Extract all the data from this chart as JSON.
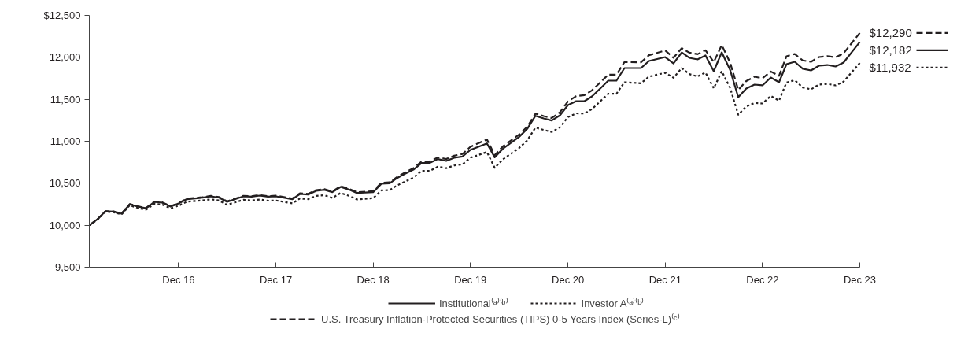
{
  "chart_data": {
    "type": "line",
    "x": [
      "2016-01",
      "2016-02",
      "2016-03",
      "2016-04",
      "2016-05",
      "2016-06",
      "2016-07",
      "2016-08",
      "2016-09",
      "2016-10",
      "2016-11",
      "2016-12",
      "2017-01",
      "2017-03",
      "2017-04",
      "2017-05",
      "2017-06",
      "2017-08",
      "2017-09",
      "2017-10",
      "2017-11",
      "2017-12",
      "2018-02",
      "2018-03",
      "2018-04",
      "2018-05",
      "2018-06",
      "2018-07",
      "2018-08",
      "2018-09",
      "2018-10",
      "2018-12",
      "2019-01",
      "2019-02",
      "2019-03",
      "2019-04",
      "2019-05",
      "2019-06",
      "2019-07",
      "2019-08",
      "2019-09",
      "2019-10",
      "2019-11",
      "2019-12",
      "2020-02",
      "2020-03",
      "2020-04",
      "2020-06",
      "2020-07",
      "2020-08",
      "2020-09",
      "2020-10",
      "2020-11",
      "2020-12",
      "2021-01",
      "2021-02",
      "2021-03",
      "2021-04",
      "2021-05",
      "2021-06",
      "2021-07",
      "2021-09",
      "2021-10",
      "2021-12",
      "2022-01",
      "2022-02",
      "2022-03",
      "2022-04",
      "2022-05",
      "2022-06",
      "2022-07",
      "2022-08",
      "2022-09",
      "2022-10",
      "2022-11",
      "2022-12",
      "2023-01",
      "2023-02",
      "2023-03",
      "2023-04",
      "2023-05",
      "2023-06",
      "2023-07",
      "2023-08",
      "2023-09",
      "2023-10",
      "2023-12"
    ],
    "series": [
      {
        "name": "Institutional⁽ᵃ⁾⁽ᵇ⁾",
        "color": "#231f20",
        "line_style": "solid",
        "values": [
          10000,
          10072,
          10166,
          10162,
          10137,
          10250,
          10222,
          10203,
          10278,
          10269,
          10222,
          10260,
          10310,
          10328,
          10344,
          10330,
          10278,
          10344,
          10340,
          10353,
          10340,
          10344,
          10310,
          10372,
          10366,
          10410,
          10422,
          10394,
          10456,
          10425,
          10384,
          10394,
          10494,
          10500,
          10562,
          10616,
          10662,
          10741,
          10741,
          10788,
          10766,
          10803,
          10819,
          10897,
          10975,
          10809,
          10912,
          11053,
          11147,
          11303,
          11272,
          11247,
          11309,
          11431,
          11478,
          11478,
          11534,
          11628,
          11722,
          11722,
          11872,
          11872,
          11956,
          12003,
          11928,
          12059,
          11994,
          11975,
          12022,
          11834,
          12059,
          11853,
          11525,
          11628,
          11675,
          11666,
          11759,
          11703,
          11919,
          11947,
          11863,
          11844,
          11900,
          11909,
          11891,
          11938,
          12182
        ]
      },
      {
        "name": "Investor A⁽ᵃ⁾⁽ᵇ⁾",
        "color": "#231f20",
        "line_style": "dotted",
        "values": [
          10000,
          10068,
          10160,
          10155,
          10128,
          10238,
          10205,
          10185,
          10255,
          10245,
          10200,
          10232,
          10280,
          10295,
          10308,
          10295,
          10243,
          10302,
          10295,
          10306,
          10292,
          10295,
          10260,
          10318,
          10310,
          10350,
          10357,
          10325,
          10384,
          10350,
          10306,
          10322,
          10415,
          10418,
          10475,
          10522,
          10568,
          10647,
          10647,
          10697,
          10679,
          10712,
          10725,
          10803,
          10872,
          10684,
          10785,
          10920,
          11010,
          11163,
          11135,
          11110,
          11168,
          11288,
          11333,
          11331,
          11383,
          11475,
          11566,
          11566,
          11703,
          11691,
          11770,
          11816,
          11756,
          11872,
          11800,
          11772,
          11819,
          11631,
          11834,
          11640,
          11316,
          11415,
          11456,
          11450,
          11540,
          11484,
          11700,
          11728,
          11640,
          11619,
          11675,
          11684,
          11666,
          11710,
          11932
        ]
      },
      {
        "name": "U.S. Treasury Inflation-Protected Securities (TIPS) 0-5 Years Index (Series-L)⁽ᶜ⁾",
        "color": "#231f20",
        "line_style": "dashed",
        "values": [
          10000,
          10072,
          10166,
          10164,
          10140,
          10252,
          10225,
          10206,
          10282,
          10272,
          10226,
          10264,
          10315,
          10334,
          10350,
          10336,
          10284,
          10350,
          10346,
          10360,
          10347,
          10352,
          10318,
          10380,
          10374,
          10418,
          10430,
          10402,
          10465,
          10434,
          10394,
          10405,
          10505,
          10512,
          10575,
          10630,
          10678,
          10758,
          10760,
          10808,
          10788,
          10828,
          10848,
          10934,
          11022,
          10834,
          10940,
          11080,
          11172,
          11328,
          11300,
          11277,
          11345,
          11475,
          11538,
          11550,
          11606,
          11700,
          11794,
          11794,
          11944,
          11941,
          12025,
          12081,
          11995,
          12109,
          12056,
          12037,
          12084,
          11943,
          12146,
          11940,
          11612,
          11718,
          11769,
          11750,
          11831,
          11780,
          12013,
          12040,
          11963,
          11947,
          12003,
          12015,
          12000,
          12047,
          12290
        ]
      }
    ],
    "annotations": [
      {
        "text": "$12,290",
        "x": "2023-12",
        "y": 12290
      },
      {
        "text": "$12,182",
        "x": "2023-12",
        "y": 12182
      },
      {
        "text": "$11,932",
        "x": "2023-12",
        "y": 11932
      }
    ],
    "xlim": [
      "2016-01",
      "2023-12"
    ],
    "xticks": [
      {
        "value": "2016-12",
        "label": "Dec 16"
      },
      {
        "value": "2017-12",
        "label": "Dec 17"
      },
      {
        "value": "2018-12",
        "label": "Dec 18"
      },
      {
        "value": "2019-12",
        "label": "Dec 19"
      },
      {
        "value": "2020-12",
        "label": "Dec 20"
      },
      {
        "value": "2021-12",
        "label": "Dec 21"
      },
      {
        "value": "2022-12",
        "label": "Dec 22"
      },
      {
        "value": "2023-12",
        "label": "Dec 23"
      }
    ],
    "ylim": [
      9500,
      12500
    ],
    "yticks": [
      {
        "value": 9500,
        "label": "9,500"
      },
      {
        "value": 10000,
        "label": "10,000"
      },
      {
        "value": 10500,
        "label": "10,500"
      },
      {
        "value": 11000,
        "label": "11,000"
      },
      {
        "value": 11500,
        "label": "11,500"
      },
      {
        "value": 12000,
        "label": "12,000"
      },
      {
        "value": 12500,
        "label": "$12,500"
      }
    ],
    "grid": false,
    "legend": "bottom",
    "marker": "none"
  }
}
